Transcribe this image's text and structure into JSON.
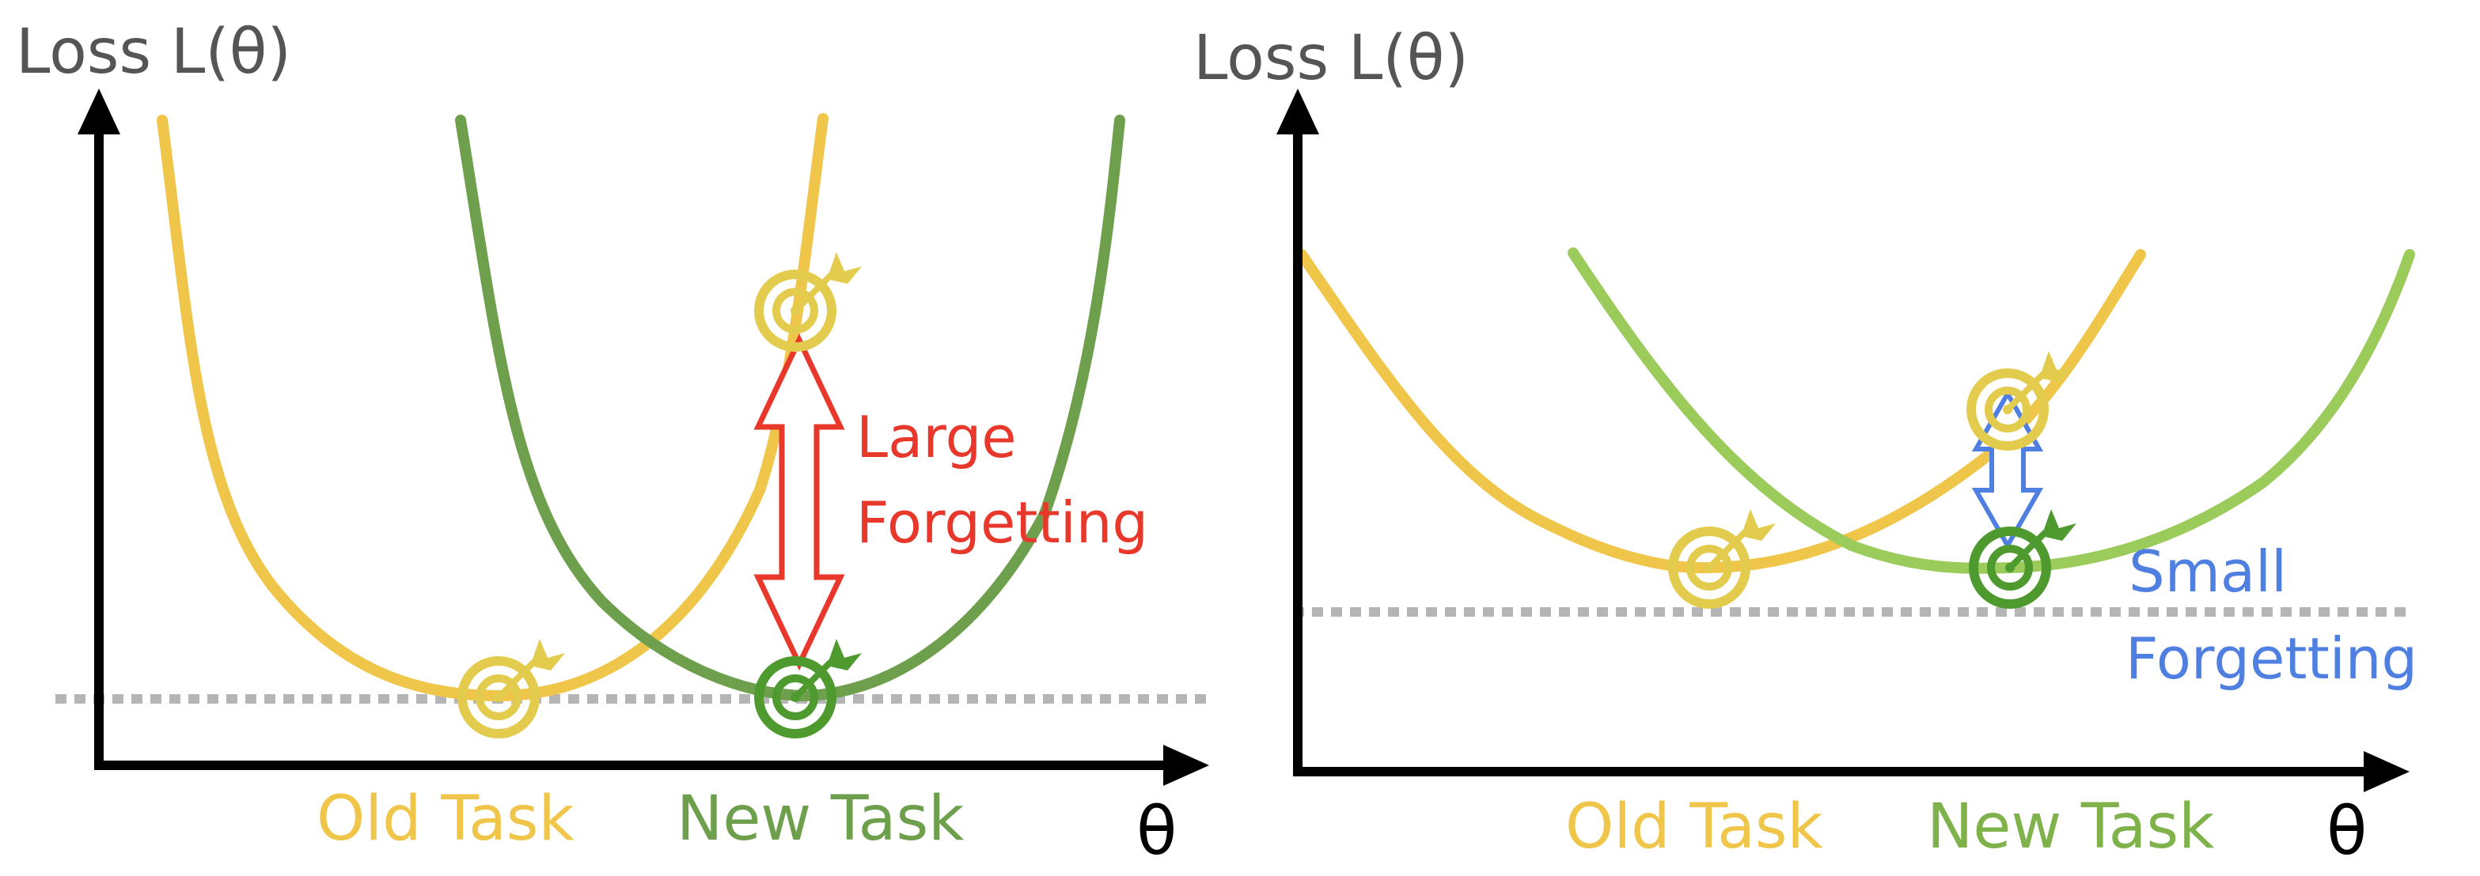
{
  "colors": {
    "old_task": "#F0C64A",
    "new_task_left": "#6E9F4C",
    "new_task_right": "#9BCC5B",
    "target_old": "#E3CB4D",
    "target_new": "#4E9A2F",
    "large_forgetting": "#E8382B",
    "small_forgetting": "#4F7FE0",
    "axis_label": "#555555",
    "axis": "#000000",
    "dotted": "#B5B5B5"
  },
  "panels": [
    {
      "id": "left",
      "ylabel": "Loss L(θ)",
      "xlabel": "θ",
      "old_task_label": "Old Task",
      "new_task_label": "New Task",
      "forgetting_line1": "Large",
      "forgetting_line2": "Forgetting"
    },
    {
      "id": "right",
      "ylabel": "Loss L(θ)",
      "xlabel": "θ",
      "old_task_label": "Old Task",
      "new_task_label": "New Task",
      "forgetting_line1": "Small",
      "forgetting_line2": "Forgetting"
    }
  ]
}
